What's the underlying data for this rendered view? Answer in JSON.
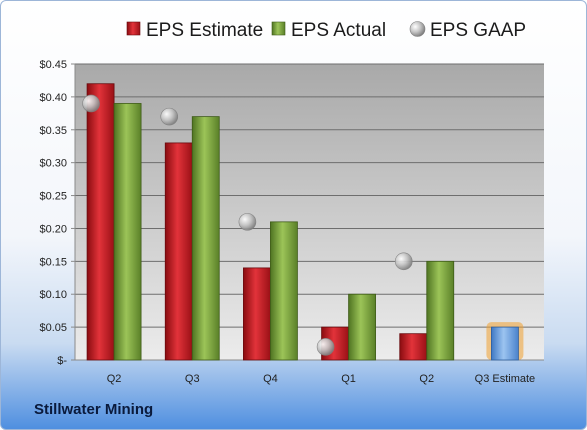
{
  "chart_data": {
    "type": "bar",
    "categories": [
      "Q2",
      "Q3",
      "Q4",
      "Q1",
      "Q2",
      "Q3 Estimate"
    ],
    "series": [
      {
        "name": "EPS Estimate",
        "values": [
          0.42,
          0.33,
          0.14,
          0.05,
          0.04,
          null
        ],
        "color": "#c0181f"
      },
      {
        "name": "EPS Actual",
        "values": [
          0.39,
          0.37,
          0.21,
          0.1,
          0.15,
          null
        ],
        "color": "#7aa03c"
      },
      {
        "name": "EPS GAAP",
        "values": [
          0.39,
          0.37,
          0.21,
          0.02,
          0.15,
          null
        ],
        "color": "#c8c8c8"
      }
    ],
    "forecast": {
      "category": "Q3 Estimate",
      "value": 0.05,
      "color": "#6fa3e0",
      "glow": "#f0a030"
    },
    "y_ticks": [
      "$-",
      "$0.05",
      "$0.10",
      "$0.15",
      "$0.20",
      "$0.25",
      "$0.30",
      "$0.35",
      "$0.40",
      "$0.45"
    ],
    "ylim": [
      0,
      0.45
    ],
    "grid": true,
    "legend_position": "top",
    "title": "",
    "xlabel": "",
    "ylabel": ""
  },
  "company": "Stillwater Mining"
}
